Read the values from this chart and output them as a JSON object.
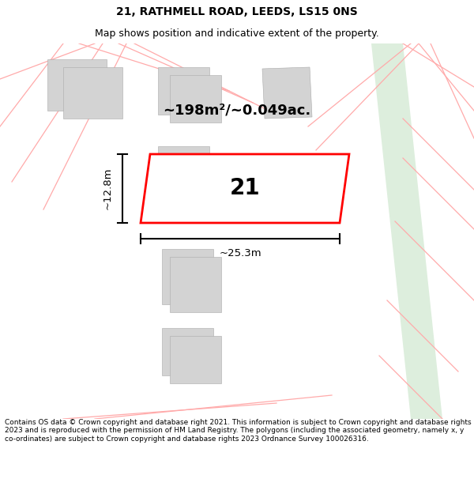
{
  "title": "21, RATHMELL ROAD, LEEDS, LS15 0NS",
  "subtitle": "Map shows position and indicative extent of the property.",
  "area_text": "~198m²/~0.049ac.",
  "plot_number": "21",
  "width_label": "~25.3m",
  "height_label": "~12.8m",
  "footer_text": "Contains OS data © Crown copyright and database right 2021. This information is subject to Crown copyright and database rights 2023 and is reproduced with the permission of HM Land Registry. The polygons (including the associated geometry, namely x, y co-ordinates) are subject to Crown copyright and database rights 2023 Ordnance Survey 100026316.",
  "bg_color": "#ffffff",
  "map_bg": "#ffffff",
  "plot_color": "#ff0000",
  "plot_fill": "#ffffff",
  "building_color": "#d3d3d3",
  "pink_line_color": "#ffaaaa",
  "green_strip_color": "#ddeedd",
  "title_fontsize": 10,
  "subtitle_fontsize": 9,
  "footer_fontsize": 6.5
}
